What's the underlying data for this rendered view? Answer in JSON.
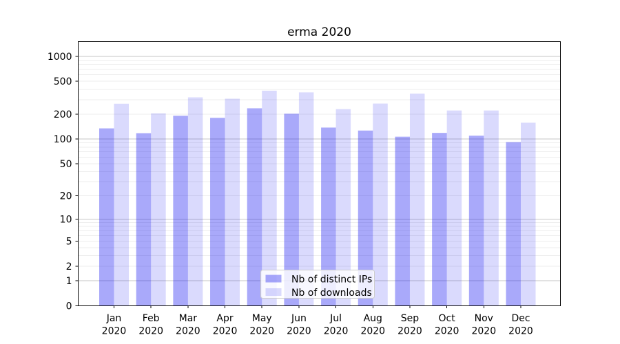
{
  "figure": {
    "background": "#ffffff",
    "text_color": "#000000",
    "spine_color": "#000000"
  },
  "chart_data": {
    "type": "bar",
    "title": "erma 2020",
    "categories": [
      "Jan 2020",
      "Feb 2020",
      "Mar 2020",
      "Apr 2020",
      "May 2020",
      "Jun 2020",
      "Jul 2020",
      "Aug 2020",
      "Sep 2020",
      "Oct 2020",
      "Nov 2020",
      "Dec 2020"
    ],
    "month_labels": [
      "Jan",
      "Feb",
      "Mar",
      "Apr",
      "May",
      "Jun",
      "Jul",
      "Aug",
      "Sep",
      "Oct",
      "Nov",
      "Dec"
    ],
    "year_label": "2020",
    "series": [
      {
        "name": "Nb of distinct IPs",
        "color": "rgba(10,10,240,0.35)",
        "values": [
          135,
          118,
          192,
          181,
          236,
          203,
          138,
          127,
          107,
          119,
          110,
          92
        ]
      },
      {
        "name": "Nb of downloads",
        "color": "rgba(10,10,240,0.15)",
        "values": [
          268,
          205,
          320,
          308,
          385,
          367,
          231,
          269,
          355,
          222,
          222,
          158
        ]
      }
    ],
    "y_axis": {
      "scale": "log1p",
      "ylim": [
        0,
        1500
      ],
      "ticks": [
        0,
        1,
        2,
        5,
        10,
        20,
        50,
        100,
        200,
        500,
        1000
      ]
    },
    "x_axis": {
      "ticks_per_month": true
    },
    "grid": {
      "on": true,
      "major_values": [
        1,
        10,
        100,
        1000
      ],
      "minor_multipliers": [
        2,
        3,
        4,
        5,
        6,
        7,
        8,
        9
      ],
      "minor_decades": [
        1,
        10,
        100
      ],
      "major_color": "#c6c6c6",
      "minor_color": "#ededed"
    },
    "legend": {
      "position": "lower center",
      "background": "rgba(255,255,255,0.8)",
      "border_color": "#cccccc"
    }
  }
}
